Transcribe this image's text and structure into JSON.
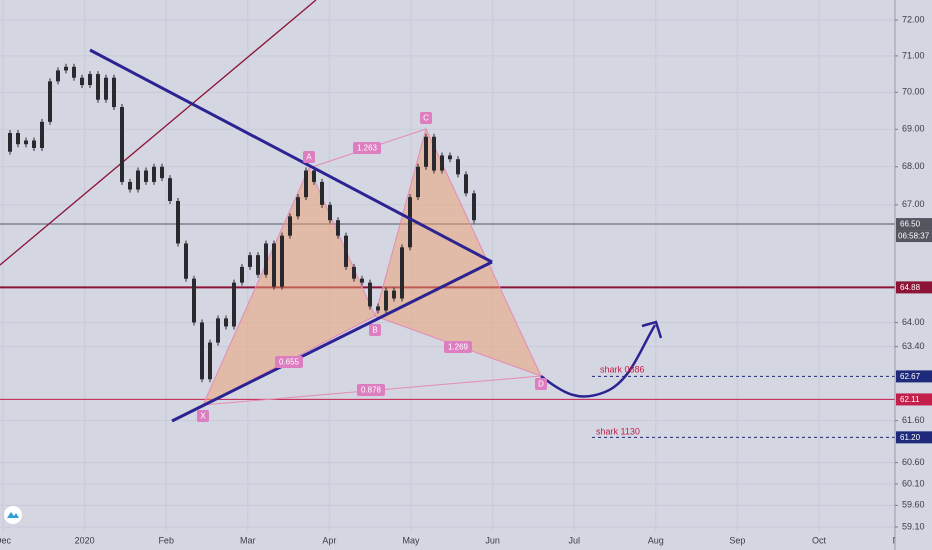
{
  "chart_data": {
    "type": "candlestick",
    "x_labels": [
      "Dec",
      "2020",
      "Feb",
      "Mar",
      "Apr",
      "May",
      "Jun",
      "Jul",
      "Aug",
      "Sep",
      "Oct",
      "Nov"
    ],
    "values": [
      68.4,
      68.9,
      68.6,
      68.7,
      68.5,
      69.2,
      70.3,
      70.6,
      70.7,
      70.4,
      70.2,
      70.5,
      69.8,
      70.4,
      69.6,
      67.6,
      67.4,
      67.9,
      67.6,
      68.0,
      67.7,
      67.1,
      66.0,
      65.1,
      64.0,
      62.6,
      63.5,
      64.1,
      63.9,
      65.0,
      65.4,
      65.7,
      65.2,
      66.0,
      64.9,
      66.2,
      66.7,
      67.2,
      67.9,
      67.6,
      67.0,
      66.6,
      66.2,
      65.4,
      65.1,
      65.0,
      64.4,
      64.3,
      64.8,
      64.6,
      65.9,
      67.2,
      68.0,
      68.8,
      67.9,
      68.3,
      68.2,
      67.8,
      67.3,
      66.6
    ],
    "color": "#2a2a2e",
    "log_scale": true,
    "ylim": [
      59.1,
      72
    ],
    "yticks": [
      {
        "value": 72,
        "label": "72.00"
      },
      {
        "value": 71,
        "label": "71.00"
      },
      {
        "value": 70,
        "label": "70.00"
      },
      {
        "value": 69,
        "label": "69.00"
      },
      {
        "value": 68,
        "label": "68.00"
      },
      {
        "value": 67,
        "label": "67.00"
      },
      {
        "value": 64,
        "label": "64.00"
      },
      {
        "value": 63.4,
        "label": "63.40"
      },
      {
        "value": 61.6,
        "label": "61.60"
      },
      {
        "value": 60.6,
        "label": "60.60"
      },
      {
        "value": 60.1,
        "label": "60.10"
      },
      {
        "value": 59.6,
        "label": "59.60"
      },
      {
        "value": 59.1,
        "label": "59.10"
      }
    ],
    "grid": true,
    "price_levels": [
      {
        "value": 66.5,
        "label": "66.50",
        "color": "#555560",
        "style": "solid"
      },
      {
        "value": 64.88,
        "label": "64.88",
        "color": "#8c1436",
        "style": "thick"
      },
      {
        "value": 62.67,
        "label": "62.67",
        "color": "#1f2a7a",
        "style": "dashed"
      },
      {
        "value": 62.11,
        "label": "62.11",
        "color": "#c41e4a",
        "style": "solid"
      },
      {
        "value": 61.2,
        "label": "61.20",
        "color": "#1f2a7a",
        "style": "dashed"
      }
    ],
    "countdown": "06:58:37",
    "pattern_points": [
      "X",
      "A",
      "B",
      "C",
      "D"
    ],
    "pattern_ratios": [
      "0.655",
      "1.263",
      "1.269",
      "0.878"
    ],
    "annotations": [
      "shark 0886",
      "shark 1130"
    ]
  }
}
